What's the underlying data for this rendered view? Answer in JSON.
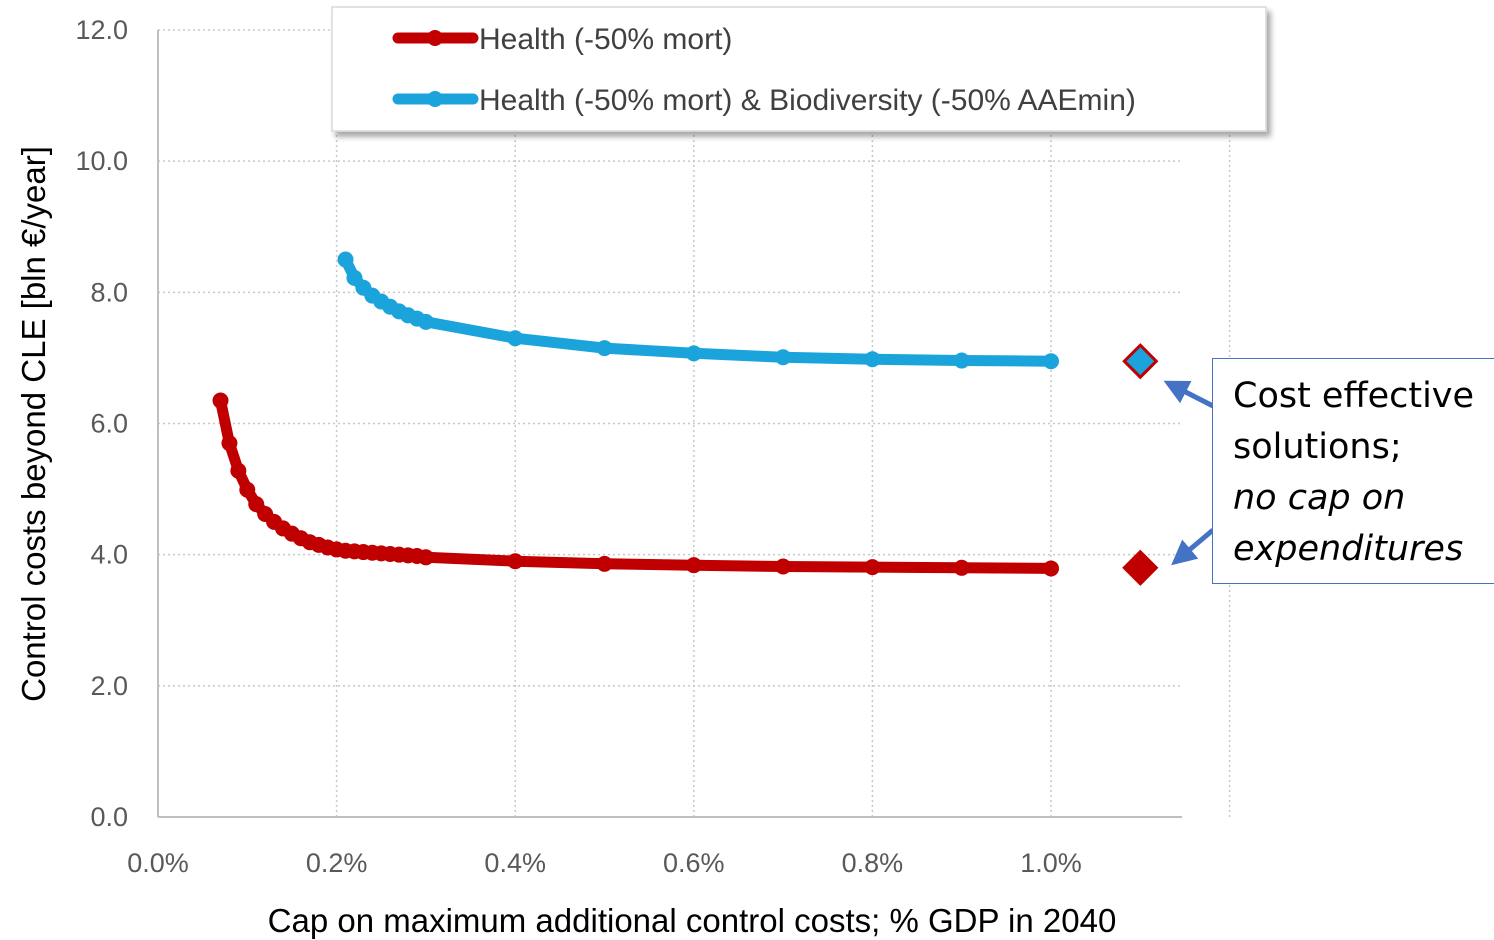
{
  "chart_data": {
    "type": "line",
    "title": "",
    "xlabel": "Cap on maximum additional control costs; % GDP in 2040",
    "ylabel": "Control costs beyond CLE [bln €/year]",
    "xlim": [
      0,
      1.15
    ],
    "ylim": [
      0,
      12
    ],
    "x_ticks": [
      0,
      0.2,
      0.4,
      0.6,
      0.8,
      1.0
    ],
    "x_tick_labels": [
      "0.0%",
      "0.2%",
      "0.4%",
      "0.6%",
      "0.8%",
      "1.0%"
    ],
    "y_ticks": [
      0,
      2,
      4,
      6,
      8,
      10,
      12
    ],
    "y_tick_labels": [
      "0.0",
      "2.0",
      "4.0",
      "6.0",
      "8.0",
      "10.0",
      "12.0"
    ],
    "grid": true,
    "legend_position": "top",
    "series": [
      {
        "name": "Health (-50% mort)",
        "color": "#c00000",
        "x": [
          0.07,
          0.08,
          0.09,
          0.1,
          0.11,
          0.12,
          0.13,
          0.14,
          0.15,
          0.16,
          0.17,
          0.18,
          0.19,
          0.2,
          0.21,
          0.22,
          0.23,
          0.24,
          0.25,
          0.26,
          0.27,
          0.28,
          0.29,
          0.3,
          0.4,
          0.5,
          0.6,
          0.7,
          0.8,
          0.9,
          1.0
        ],
        "y": [
          6.35,
          5.7,
          5.28,
          4.99,
          4.77,
          4.62,
          4.5,
          4.4,
          4.32,
          4.25,
          4.19,
          4.15,
          4.11,
          4.08,
          4.06,
          4.05,
          4.04,
          4.03,
          4.02,
          4.01,
          4.0,
          3.99,
          3.98,
          3.96,
          3.9,
          3.86,
          3.84,
          3.82,
          3.81,
          3.8,
          3.79
        ]
      },
      {
        "name": "Health (-50% mort) & Biodiversity (-50% AAEmin)",
        "color": "#1ba3dc",
        "x": [
          0.21,
          0.22,
          0.23,
          0.24,
          0.25,
          0.26,
          0.27,
          0.28,
          0.29,
          0.3,
          0.4,
          0.5,
          0.6,
          0.7,
          0.8,
          0.9,
          1.0
        ],
        "y": [
          8.5,
          8.22,
          8.07,
          7.95,
          7.86,
          7.78,
          7.71,
          7.65,
          7.6,
          7.55,
          7.3,
          7.15,
          7.07,
          7.01,
          6.98,
          6.96,
          6.95
        ]
      }
    ],
    "unconstrained_points": [
      {
        "series": "Health (-50% mort) & Biodiversity (-50% AAEmin)",
        "x": 1.1,
        "y": 6.95,
        "fill": "#1ba3dc",
        "stroke": "#c00000",
        "marker": "diamond"
      },
      {
        "series": "Health (-50% mort)",
        "x": 1.1,
        "y": 3.8,
        "fill": "#c00000",
        "stroke": "#c00000",
        "marker": "diamond"
      }
    ],
    "annotation": {
      "lines": [
        "Cost effective",
        "solutions;",
        "no cap on",
        "expenditures"
      ],
      "border_color": "#4472c4",
      "arrow_color": "#4472c4"
    }
  }
}
